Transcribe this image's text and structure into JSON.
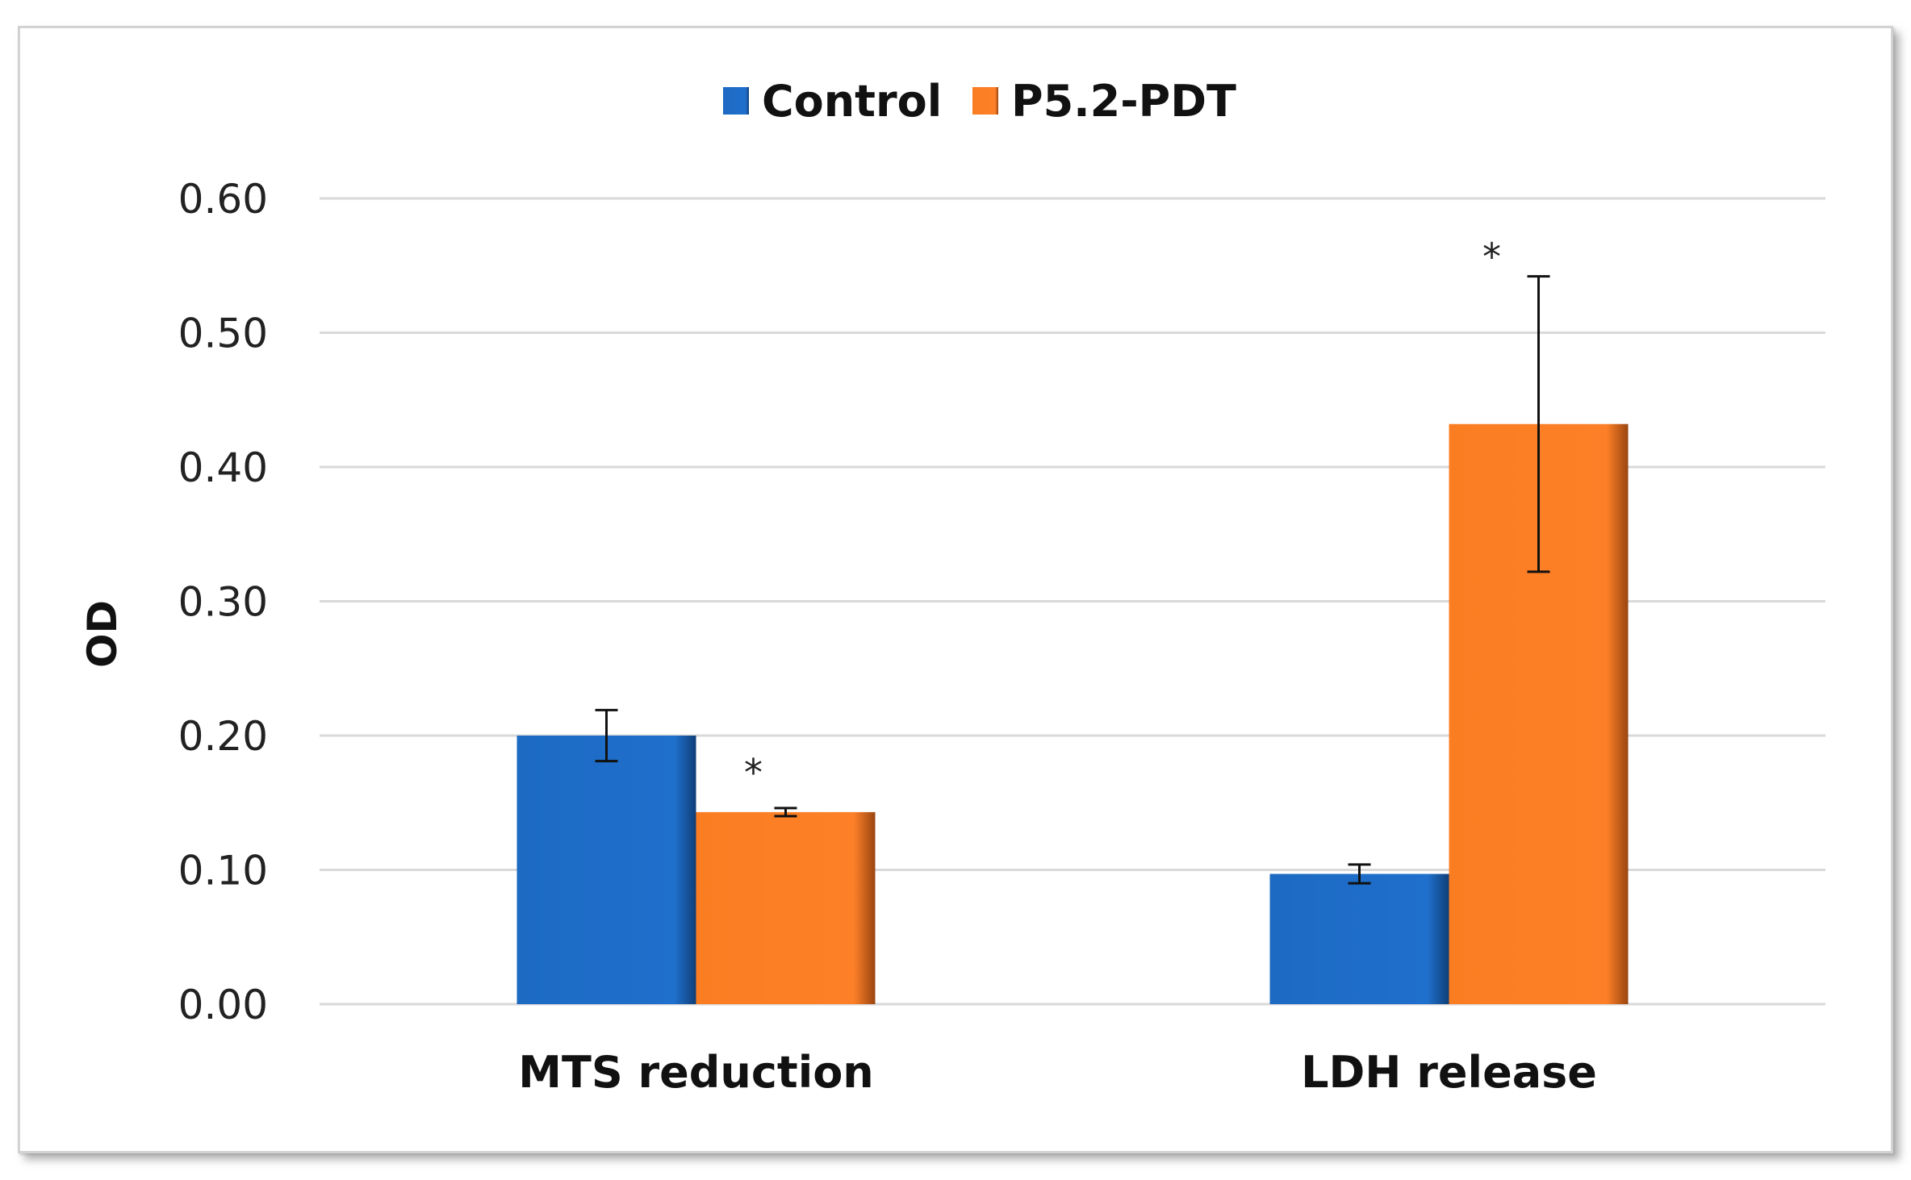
{
  "chart_data": {
    "type": "bar",
    "title": "",
    "xlabel": "",
    "ylabel": "OD",
    "ylim": [
      0,
      0.6
    ],
    "yticks": [
      "0.00",
      "0.10",
      "0.20",
      "0.30",
      "0.40",
      "0.50",
      "0.60"
    ],
    "ytick_values": [
      0,
      0.1,
      0.2,
      0.3,
      0.4,
      0.5,
      0.6
    ],
    "grid": true,
    "legend_position": "top",
    "categories": [
      "MTS reduction",
      "LDH release"
    ],
    "series": [
      {
        "name": "Control",
        "color": "#1f6fc9",
        "values": [
          0.2,
          0.097
        ],
        "errors": [
          0.019,
          0.007
        ],
        "significance": [
          "",
          ""
        ]
      },
      {
        "name": "P5.2-PDT",
        "color": "#fd7f25",
        "values": [
          0.143,
          0.432
        ],
        "errors": [
          0.003,
          0.11
        ],
        "significance": [
          "*",
          "*"
        ]
      }
    ]
  }
}
